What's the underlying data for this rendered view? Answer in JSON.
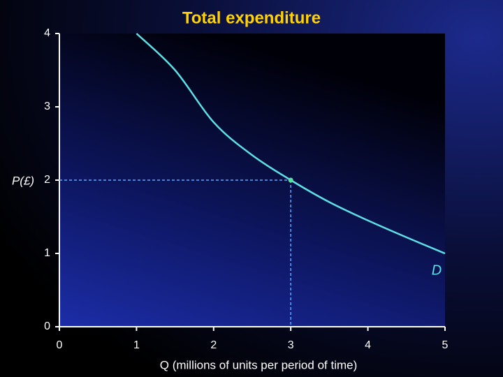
{
  "chart_data": {
    "type": "line",
    "title": "Total expenditure",
    "x_label": "Q (millions of units per period of time)",
    "y_label": "P(£)",
    "x": [
      1,
      1.5,
      2,
      2.5,
      3,
      3.5,
      4,
      4.5,
      5
    ],
    "series": [
      {
        "name": "D",
        "color": "#5ce0e6",
        "values": [
          4,
          3.5,
          2.79,
          2.34,
          2,
          1.7,
          1.45,
          1.22,
          1
        ]
      }
    ],
    "highlight": {
      "x": 3,
      "y": 2
    },
    "xlim": [
      0,
      5
    ],
    "ylim": [
      0,
      4
    ],
    "xticks": [
      0,
      1,
      2,
      3,
      4,
      5
    ],
    "yticks": [
      0,
      1,
      2,
      3,
      4
    ]
  }
}
